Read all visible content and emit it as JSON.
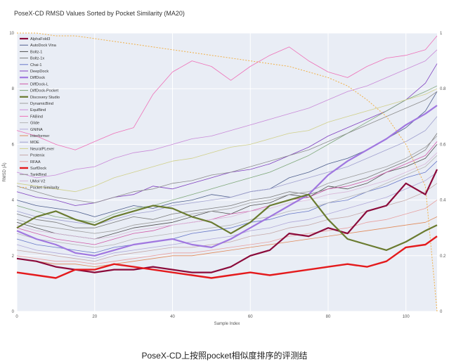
{
  "chart_data": {
    "type": "line",
    "title": "PoseX-CD RMSD Values Sorted by Pocket Similarity (MA20)",
    "xlabel": "Sample Index",
    "ylabel": "RMSD (Å)",
    "xlim": [
      0,
      108
    ],
    "ylim": [
      0,
      10
    ],
    "y2lim": [
      0,
      1
    ],
    "x_ticks": [
      0,
      20,
      40,
      60,
      80,
      100
    ],
    "y_ticks": [
      0,
      2,
      4,
      6,
      8,
      10
    ],
    "y2_ticks": [
      0,
      0.2,
      0.4,
      0.6,
      0.8,
      1
    ],
    "grid": true,
    "legend_position": "top-left",
    "x": [
      0,
      5,
      10,
      15,
      20,
      25,
      30,
      35,
      40,
      45,
      50,
      55,
      60,
      65,
      70,
      75,
      80,
      85,
      90,
      95,
      100,
      105,
      108
    ],
    "series": [
      {
        "name": "AlphaFold3",
        "color": "#8b0a3a",
        "width": 2.2,
        "values": [
          1.9,
          1.8,
          1.6,
          1.5,
          1.4,
          1.5,
          1.5,
          1.6,
          1.5,
          1.4,
          1.4,
          1.6,
          2.0,
          2.2,
          2.8,
          2.7,
          3.0,
          2.8,
          3.6,
          3.8,
          4.6,
          4.2,
          5.1
        ]
      },
      {
        "name": "AutoDock Vina",
        "color": "#4c5d8c",
        "width": 0.8,
        "values": [
          4.0,
          3.8,
          3.7,
          3.6,
          3.4,
          3.6,
          3.8,
          3.7,
          3.9,
          4.0,
          4.2,
          4.1,
          4.3,
          4.4,
          4.8,
          5.0,
          5.3,
          5.5,
          5.8,
          6.2,
          6.6,
          7.2,
          7.9
        ]
      },
      {
        "name": "Boltz-1",
        "color": "#4f4f4f",
        "width": 0.8,
        "values": [
          3.2,
          3.0,
          2.8,
          2.7,
          2.6,
          2.8,
          3.0,
          3.1,
          3.2,
          3.4,
          3.6,
          3.5,
          3.8,
          3.9,
          4.2,
          4.1,
          4.5,
          4.4,
          4.6,
          5.0,
          5.2,
          5.5,
          6.0
        ]
      },
      {
        "name": "Boltz-1x",
        "color": "#7a7a7a",
        "width": 0.8,
        "values": [
          3.5,
          3.3,
          3.2,
          3.0,
          3.0,
          3.2,
          3.4,
          3.3,
          3.5,
          3.6,
          3.7,
          3.8,
          4.0,
          4.1,
          4.3,
          4.2,
          4.4,
          4.6,
          4.8,
          5.1,
          5.4,
          5.8,
          6.4
        ]
      },
      {
        "name": "Chai-1",
        "color": "#6677c8",
        "width": 0.8,
        "values": [
          2.6,
          2.4,
          2.3,
          2.2,
          2.1,
          2.3,
          2.4,
          2.5,
          2.6,
          2.8,
          2.9,
          3.0,
          3.2,
          3.3,
          3.5,
          3.6,
          3.9,
          4.0,
          4.3,
          4.5,
          4.8,
          5.0,
          5.4
        ]
      },
      {
        "name": "DeepDock",
        "color": "#7f3fbf",
        "width": 0.8,
        "values": [
          4.3,
          4.1,
          4.0,
          3.8,
          3.9,
          4.1,
          4.2,
          4.5,
          4.4,
          4.6,
          4.8,
          5.0,
          5.1,
          5.3,
          5.6,
          5.9,
          6.3,
          6.6,
          6.9,
          7.2,
          7.6,
          8.2,
          8.9
        ]
      },
      {
        "name": "DiffDock",
        "color": "#a077e0",
        "width": 2.2,
        "values": [
          2.9,
          2.6,
          2.4,
          2.1,
          2.0,
          2.2,
          2.4,
          2.5,
          2.6,
          2.4,
          2.3,
          2.6,
          3.0,
          3.4,
          3.8,
          4.2,
          4.9,
          5.4,
          5.8,
          6.2,
          6.7,
          7.1,
          7.4
        ]
      },
      {
        "name": "DiffDock-L",
        "color": "#d05aa8",
        "width": 0.8,
        "values": [
          3.0,
          2.8,
          2.6,
          2.5,
          2.4,
          2.6,
          2.8,
          2.9,
          3.1,
          3.2,
          3.3,
          3.5,
          3.6,
          3.8,
          4.0,
          4.1,
          4.4,
          4.5,
          4.7,
          5.0,
          5.3,
          5.6,
          6.1
        ]
      },
      {
        "name": "DiffDock-Pocket",
        "color": "#7fa87a",
        "width": 0.8,
        "values": [
          3.8,
          3.6,
          3.4,
          3.3,
          3.2,
          3.5,
          3.7,
          3.8,
          4.0,
          4.2,
          4.4,
          4.6,
          4.8,
          5.0,
          5.3,
          5.6,
          6.0,
          6.4,
          6.8,
          7.2,
          7.6,
          7.9,
          8.1
        ]
      },
      {
        "name": "Discovery Studio",
        "color": "#6a7b2f",
        "width": 2.2,
        "values": [
          3.0,
          3.4,
          3.6,
          3.3,
          3.1,
          3.4,
          3.6,
          3.8,
          3.7,
          3.4,
          3.2,
          2.8,
          3.2,
          3.8,
          4.0,
          4.2,
          3.3,
          2.6,
          2.4,
          2.2,
          2.5,
          2.9,
          3.1
        ]
      },
      {
        "name": "DynamicBind",
        "color": "#9d9d9d",
        "width": 0.8,
        "values": [
          3.3,
          3.1,
          3.0,
          2.9,
          2.8,
          2.9,
          3.1,
          3.2,
          3.3,
          3.5,
          3.6,
          3.7,
          3.9,
          4.0,
          4.2,
          4.3,
          4.6,
          4.8,
          5.0,
          5.2,
          5.5,
          5.9,
          6.3
        ]
      },
      {
        "name": "EquiBind",
        "color": "#c98ad8",
        "width": 0.8,
        "values": [
          5.0,
          4.8,
          4.9,
          5.1,
          5.2,
          5.5,
          5.7,
          5.8,
          6.0,
          6.2,
          6.3,
          6.5,
          6.7,
          6.9,
          7.1,
          7.3,
          7.6,
          7.9,
          8.1,
          8.4,
          8.7,
          9.0,
          9.4
        ]
      },
      {
        "name": "FABind",
        "color": "#ee70b8",
        "width": 0.8,
        "values": [
          6.5,
          6.3,
          6.0,
          5.8,
          6.1,
          6.4,
          6.6,
          7.8,
          8.6,
          9.0,
          8.8,
          8.3,
          8.8,
          9.2,
          9.5,
          9.0,
          8.6,
          8.4,
          8.8,
          9.1,
          9.2,
          9.4,
          9.9
        ]
      },
      {
        "name": "Glide",
        "color": "#b5b5b5",
        "width": 0.8,
        "values": [
          2.8,
          2.6,
          2.5,
          2.4,
          2.3,
          2.4,
          2.6,
          2.7,
          2.8,
          2.9,
          3.0,
          3.1,
          3.3,
          3.4,
          3.6,
          3.7,
          3.9,
          4.1,
          4.3,
          4.6,
          4.9,
          5.2,
          5.6
        ]
      },
      {
        "name": "GNINA",
        "color": "#b0a8d8",
        "width": 0.8,
        "values": [
          2.4,
          2.2,
          2.1,
          2.0,
          1.9,
          2.1,
          2.2,
          2.3,
          2.4,
          2.5,
          2.6,
          2.7,
          2.9,
          3.0,
          3.2,
          3.3,
          3.5,
          3.7,
          3.9,
          4.1,
          4.4,
          4.7,
          5.0
        ]
      },
      {
        "name": "Interformer",
        "color": "#e08a5a",
        "width": 0.8,
        "values": [
          1.9,
          1.8,
          1.7,
          1.7,
          1.6,
          1.7,
          1.8,
          1.9,
          2.0,
          2.0,
          2.1,
          2.2,
          2.3,
          2.4,
          2.5,
          2.6,
          2.7,
          2.8,
          2.9,
          3.0,
          3.1,
          3.2,
          3.4
        ]
      },
      {
        "name": "MOE",
        "color": "#a0a0cf",
        "width": 0.8,
        "values": [
          3.6,
          3.4,
          3.3,
          3.2,
          3.1,
          3.3,
          3.5,
          3.6,
          3.8,
          3.9,
          4.0,
          4.1,
          4.3,
          4.4,
          4.6,
          4.8,
          5.0,
          5.2,
          5.5,
          5.8,
          6.1,
          6.5,
          7.0
        ]
      },
      {
        "name": "NeuralPLexer",
        "color": "#d0d08a",
        "width": 0.8,
        "values": [
          4.6,
          4.5,
          4.4,
          4.3,
          4.5,
          4.8,
          5.0,
          5.2,
          5.4,
          5.5,
          5.7,
          5.9,
          6.0,
          6.2,
          6.4,
          6.5,
          6.8,
          7.0,
          7.2,
          7.4,
          7.6,
          7.8,
          8.0
        ]
      },
      {
        "name": "Protenix",
        "color": "#c4a8a8",
        "width": 0.8,
        "values": [
          2.2,
          2.1,
          2.0,
          1.9,
          1.8,
          2.0,
          2.1,
          2.2,
          2.3,
          2.3,
          2.4,
          2.5,
          2.7,
          2.8,
          3.0,
          3.1,
          3.3,
          3.4,
          3.6,
          3.8,
          4.0,
          4.3,
          4.6
        ]
      },
      {
        "name": "RFAA",
        "color": "#e8a0a0",
        "width": 0.8,
        "values": [
          2.0,
          1.9,
          1.8,
          1.8,
          1.7,
          1.8,
          1.9,
          2.0,
          2.1,
          2.1,
          2.2,
          2.3,
          2.4,
          2.5,
          2.7,
          2.8,
          2.9,
          3.0,
          3.2,
          3.3,
          3.5,
          3.7,
          4.0
        ]
      },
      {
        "name": "SurfDock",
        "color": "#e41a1c",
        "width": 2.4,
        "values": [
          1.4,
          1.3,
          1.2,
          1.5,
          1.5,
          1.7,
          1.6,
          1.5,
          1.4,
          1.3,
          1.2,
          1.3,
          1.4,
          1.3,
          1.4,
          1.5,
          1.6,
          1.7,
          1.6,
          1.8,
          2.3,
          2.4,
          2.7
        ]
      },
      {
        "name": "TankBind",
        "color": "#8c8c8c",
        "width": 0.8,
        "values": [
          4.5,
          4.3,
          4.1,
          4.0,
          3.9,
          4.1,
          4.3,
          4.4,
          4.6,
          4.7,
          4.9,
          5.0,
          5.2,
          5.4,
          5.6,
          5.8,
          6.1,
          6.4,
          6.7,
          7.0,
          7.3,
          7.6,
          7.9
        ]
      },
      {
        "name": "UMol V2",
        "color": "#d8b8d8",
        "width": 0.8,
        "values": [
          3.1,
          2.9,
          2.8,
          2.7,
          2.6,
          2.7,
          2.9,
          3.0,
          3.1,
          3.2,
          3.3,
          3.4,
          3.6,
          3.7,
          3.9,
          4.0,
          4.2,
          4.3,
          4.5,
          4.7,
          5.0,
          5.3,
          5.7
        ]
      },
      {
        "name": "Pocket Similarity",
        "color": "#f0b048",
        "width": 1.0,
        "dashed": true,
        "axis": "y2",
        "values": [
          1.0,
          1.0,
          0.99,
          0.99,
          0.98,
          0.97,
          0.96,
          0.95,
          0.94,
          0.93,
          0.92,
          0.91,
          0.9,
          0.89,
          0.88,
          0.86,
          0.84,
          0.81,
          0.76,
          0.7,
          0.6,
          0.45,
          0.0
        ]
      }
    ]
  },
  "caption": "PoseX-CD上按照pocket相似度排序的评测结"
}
